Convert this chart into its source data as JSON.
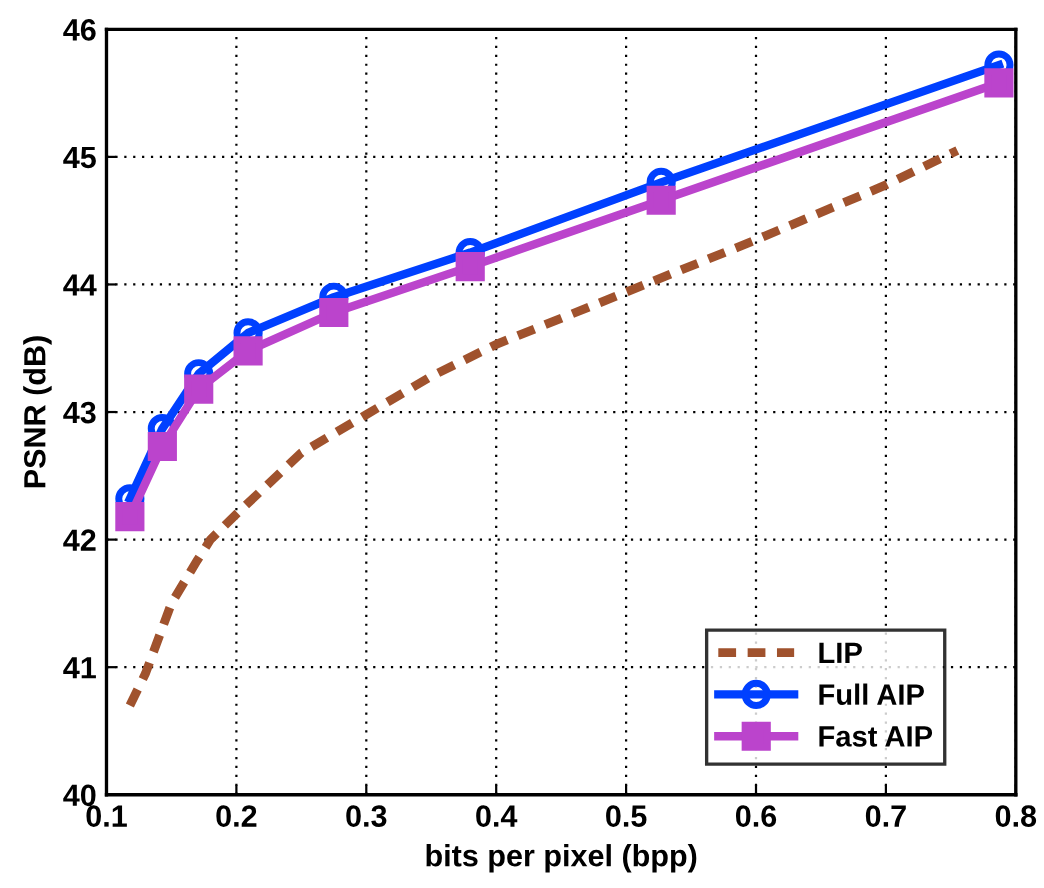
{
  "chart_data": {
    "type": "line",
    "xlabel": "bits per pixel (bpp)",
    "ylabel": "PSNR (dB)",
    "xlim": [
      0.1,
      0.8
    ],
    "xticks": [
      0.1,
      0.2,
      0.3,
      0.4,
      0.5,
      0.6,
      0.7,
      0.8
    ],
    "ylim": [
      40,
      46
    ],
    "yticks": [
      40,
      41,
      42,
      43,
      44,
      45,
      46
    ],
    "grid": true,
    "legend": "bottom right",
    "series": [
      {
        "name": "LIP",
        "color": "#a0522d",
        "line_style": "dashed",
        "marker": "none",
        "x": [
          0.118,
          0.13,
          0.15,
          0.17,
          0.18,
          0.2,
          0.25,
          0.3,
          0.35,
          0.4,
          0.5,
          0.6,
          0.7,
          0.755
        ],
        "values": [
          40.7,
          40.95,
          41.5,
          41.84,
          42.0,
          42.2,
          42.68,
          42.98,
          43.28,
          43.53,
          43.94,
          44.35,
          44.78,
          45.05
        ]
      },
      {
        "name": "Full AIP",
        "color": "#0040ff",
        "line_style": "solid",
        "marker": "circle",
        "x": [
          0.118,
          0.143,
          0.171,
          0.209,
          0.275,
          0.38,
          0.527,
          0.787
        ],
        "values": [
          42.32,
          42.87,
          43.3,
          43.62,
          43.9,
          44.25,
          44.8,
          45.72
        ]
      },
      {
        "name": "Fast AIP",
        "color": "#bb44cc",
        "line_style": "solid",
        "marker": "square",
        "x": [
          0.118,
          0.143,
          0.171,
          0.209,
          0.275,
          0.38,
          0.527,
          0.787
        ],
        "values": [
          42.18,
          42.73,
          43.18,
          43.48,
          43.78,
          44.14,
          44.66,
          45.58
        ]
      }
    ]
  }
}
